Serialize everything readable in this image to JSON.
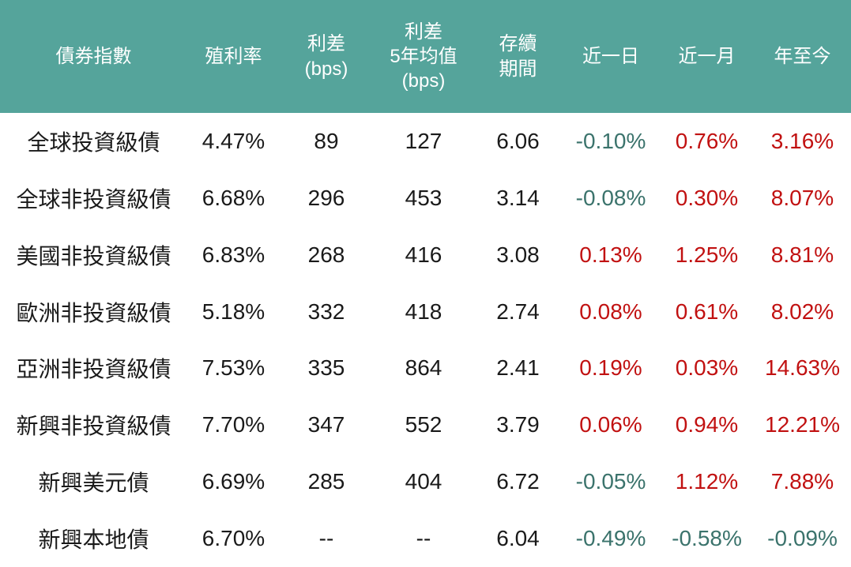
{
  "colors": {
    "header_bg": "#55A49B",
    "header_text": "#FFFFFF",
    "body_text": "#1A1A1A",
    "positive": "#C11111",
    "negative": "#3B736C"
  },
  "table": {
    "columns": [
      "債券指數",
      "殖利率",
      "利差\n(bps)",
      "利差\n5年均值\n(bps)",
      "存續\n期間",
      "近一日",
      "近一月",
      "年至今"
    ],
    "rows": [
      {
        "name": "全球投資級債",
        "yield": "4.47%",
        "spread": "89",
        "spread_5y_avg": "127",
        "duration": "6.06",
        "day": "-0.10%",
        "month": "0.76%",
        "ytd": "3.16%"
      },
      {
        "name": "全球非投資級債",
        "yield": "6.68%",
        "spread": "296",
        "spread_5y_avg": "453",
        "duration": "3.14",
        "day": "-0.08%",
        "month": "0.30%",
        "ytd": "8.07%"
      },
      {
        "name": "美國非投資級債",
        "yield": "6.83%",
        "spread": "268",
        "spread_5y_avg": "416",
        "duration": "3.08",
        "day": "0.13%",
        "month": "1.25%",
        "ytd": "8.81%"
      },
      {
        "name": "歐洲非投資級債",
        "yield": "5.18%",
        "spread": "332",
        "spread_5y_avg": "418",
        "duration": "2.74",
        "day": "0.08%",
        "month": "0.61%",
        "ytd": "8.02%"
      },
      {
        "name": "亞洲非投資級債",
        "yield": "7.53%",
        "spread": "335",
        "spread_5y_avg": "864",
        "duration": "2.41",
        "day": "0.19%",
        "month": "0.03%",
        "ytd": "14.63%"
      },
      {
        "name": "新興非投資級債",
        "yield": "7.70%",
        "spread": "347",
        "spread_5y_avg": "552",
        "duration": "3.79",
        "day": "0.06%",
        "month": "0.94%",
        "ytd": "12.21%"
      },
      {
        "name": "新興美元債",
        "yield": "6.69%",
        "spread": "285",
        "spread_5y_avg": "404",
        "duration": "6.72",
        "day": "-0.05%",
        "month": "1.12%",
        "ytd": "7.88%"
      },
      {
        "name": "新興本地債",
        "yield": "6.70%",
        "spread": "--",
        "spread_5y_avg": "--",
        "duration": "6.04",
        "day": "-0.49%",
        "month": "-0.58%",
        "ytd": "-0.09%"
      }
    ]
  },
  "chart_data": {
    "type": "table",
    "title": "",
    "columns": [
      "債券指數",
      "殖利率",
      "利差(bps)",
      "利差5年均值(bps)",
      "存續期間",
      "近一日",
      "近一月",
      "年至今"
    ],
    "rows": [
      [
        "全球投資級債",
        "4.47%",
        "89",
        "127",
        "6.06",
        "-0.10%",
        "0.76%",
        "3.16%"
      ],
      [
        "全球非投資級債",
        "6.68%",
        "296",
        "453",
        "3.14",
        "-0.08%",
        "0.30%",
        "8.07%"
      ],
      [
        "美國非投資級債",
        "6.83%",
        "268",
        "416",
        "3.08",
        "0.13%",
        "1.25%",
        "8.81%"
      ],
      [
        "歐洲非投資級債",
        "5.18%",
        "332",
        "418",
        "2.74",
        "0.08%",
        "0.61%",
        "8.02%"
      ],
      [
        "亞洲非投資級債",
        "7.53%",
        "335",
        "864",
        "2.41",
        "0.19%",
        "0.03%",
        "14.63%"
      ],
      [
        "新興非投資級債",
        "7.70%",
        "347",
        "552",
        "3.79",
        "0.06%",
        "0.94%",
        "12.21%"
      ],
      [
        "新興美元債",
        "6.69%",
        "285",
        "404",
        "6.72",
        "-0.05%",
        "1.12%",
        "7.88%"
      ],
      [
        "新興本地債",
        "6.70%",
        "--",
        "--",
        "6.04",
        "-0.49%",
        "-0.58%",
        "-0.09%"
      ]
    ],
    "legend": {
      "positive_values_color": "#C11111",
      "negative_values_color": "#3B736C"
    }
  }
}
